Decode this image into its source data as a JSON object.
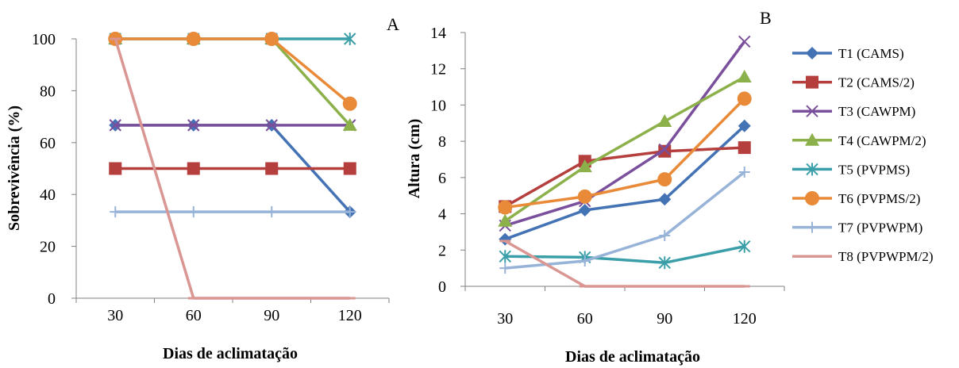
{
  "chart_data": [
    {
      "type": "line",
      "panel_label": "A",
      "xlabel": "Dias de aclimatação",
      "ylabel": "Sobrevivência (%)",
      "categories": [
        "30",
        "60",
        "90",
        "120"
      ],
      "ylim": [
        0,
        100
      ],
      "yticks": [
        "0",
        "20",
        "40",
        "60",
        "80",
        "100"
      ],
      "grid": false,
      "series": [
        {
          "name": "T1 (CAMS)",
          "values": [
            66.7,
            66.7,
            66.7,
            33.3
          ]
        },
        {
          "name": "T2 (CAMS/2)",
          "values": [
            50,
            50,
            50,
            50
          ]
        },
        {
          "name": "T3 (CAWPM)",
          "values": [
            66.7,
            66.7,
            66.7,
            66.7
          ]
        },
        {
          "name": "T4 (CAWPM/2)",
          "values": [
            100,
            100,
            100,
            66.7
          ]
        },
        {
          "name": "T5 (PVPMS)",
          "values": [
            100,
            100,
            100,
            100
          ]
        },
        {
          "name": "T6 (PVPMS/2)",
          "values": [
            100,
            100,
            100,
            75
          ]
        },
        {
          "name": "T7 (PVPWPM)",
          "values": [
            33.3,
            33.3,
            33.3,
            33.3
          ]
        },
        {
          "name": "T8 (PVPWPM/2)",
          "values": [
            100,
            0,
            0,
            0
          ]
        }
      ]
    },
    {
      "type": "line",
      "panel_label": "B",
      "xlabel": "Dias de aclimatação",
      "ylabel": "Altura (cm)",
      "categories": [
        "30",
        "60",
        "90",
        "120"
      ],
      "ylim": [
        0,
        14
      ],
      "yticks": [
        "0",
        "2",
        "4",
        "6",
        "8",
        "10",
        "12",
        "14"
      ],
      "grid": false,
      "legend_position": "right",
      "series": [
        {
          "name": "T1 (CAMS)",
          "values": [
            2.6,
            4.2,
            4.8,
            8.85
          ]
        },
        {
          "name": "T2 (CAMS/2)",
          "values": [
            4.4,
            6.9,
            7.45,
            7.65
          ]
        },
        {
          "name": "T3 (CAWPM)",
          "values": [
            3.35,
            4.7,
            7.55,
            13.5
          ]
        },
        {
          "name": "T4 (CAWPM/2)",
          "values": [
            3.6,
            6.6,
            9.1,
            11.55
          ]
        },
        {
          "name": "T5 (PVPMS)",
          "values": [
            1.65,
            1.6,
            1.3,
            2.2
          ]
        },
        {
          "name": "T6 (PVPMS/2)",
          "values": [
            4.35,
            4.95,
            5.9,
            10.35
          ]
        },
        {
          "name": "T7 (PVPWPM)",
          "values": [
            1.0,
            1.4,
            2.8,
            6.3
          ]
        },
        {
          "name": "T8 (PVPWPM/2)",
          "values": [
            2.5,
            0,
            0,
            0
          ]
        }
      ]
    }
  ],
  "series_style": [
    {
      "color": "#4473b5",
      "marker": "diamond"
    },
    {
      "color": "#b43f3c",
      "marker": "square"
    },
    {
      "color": "#7a4f9b",
      "marker": "x"
    },
    {
      "color": "#8cb04a",
      "marker": "triangle"
    },
    {
      "color": "#3a9fa8",
      "marker": "asterisk"
    },
    {
      "color": "#e98a38",
      "marker": "circle"
    },
    {
      "color": "#98b3d8",
      "marker": "plus"
    },
    {
      "color": "#d99692",
      "marker": "dash"
    }
  ]
}
